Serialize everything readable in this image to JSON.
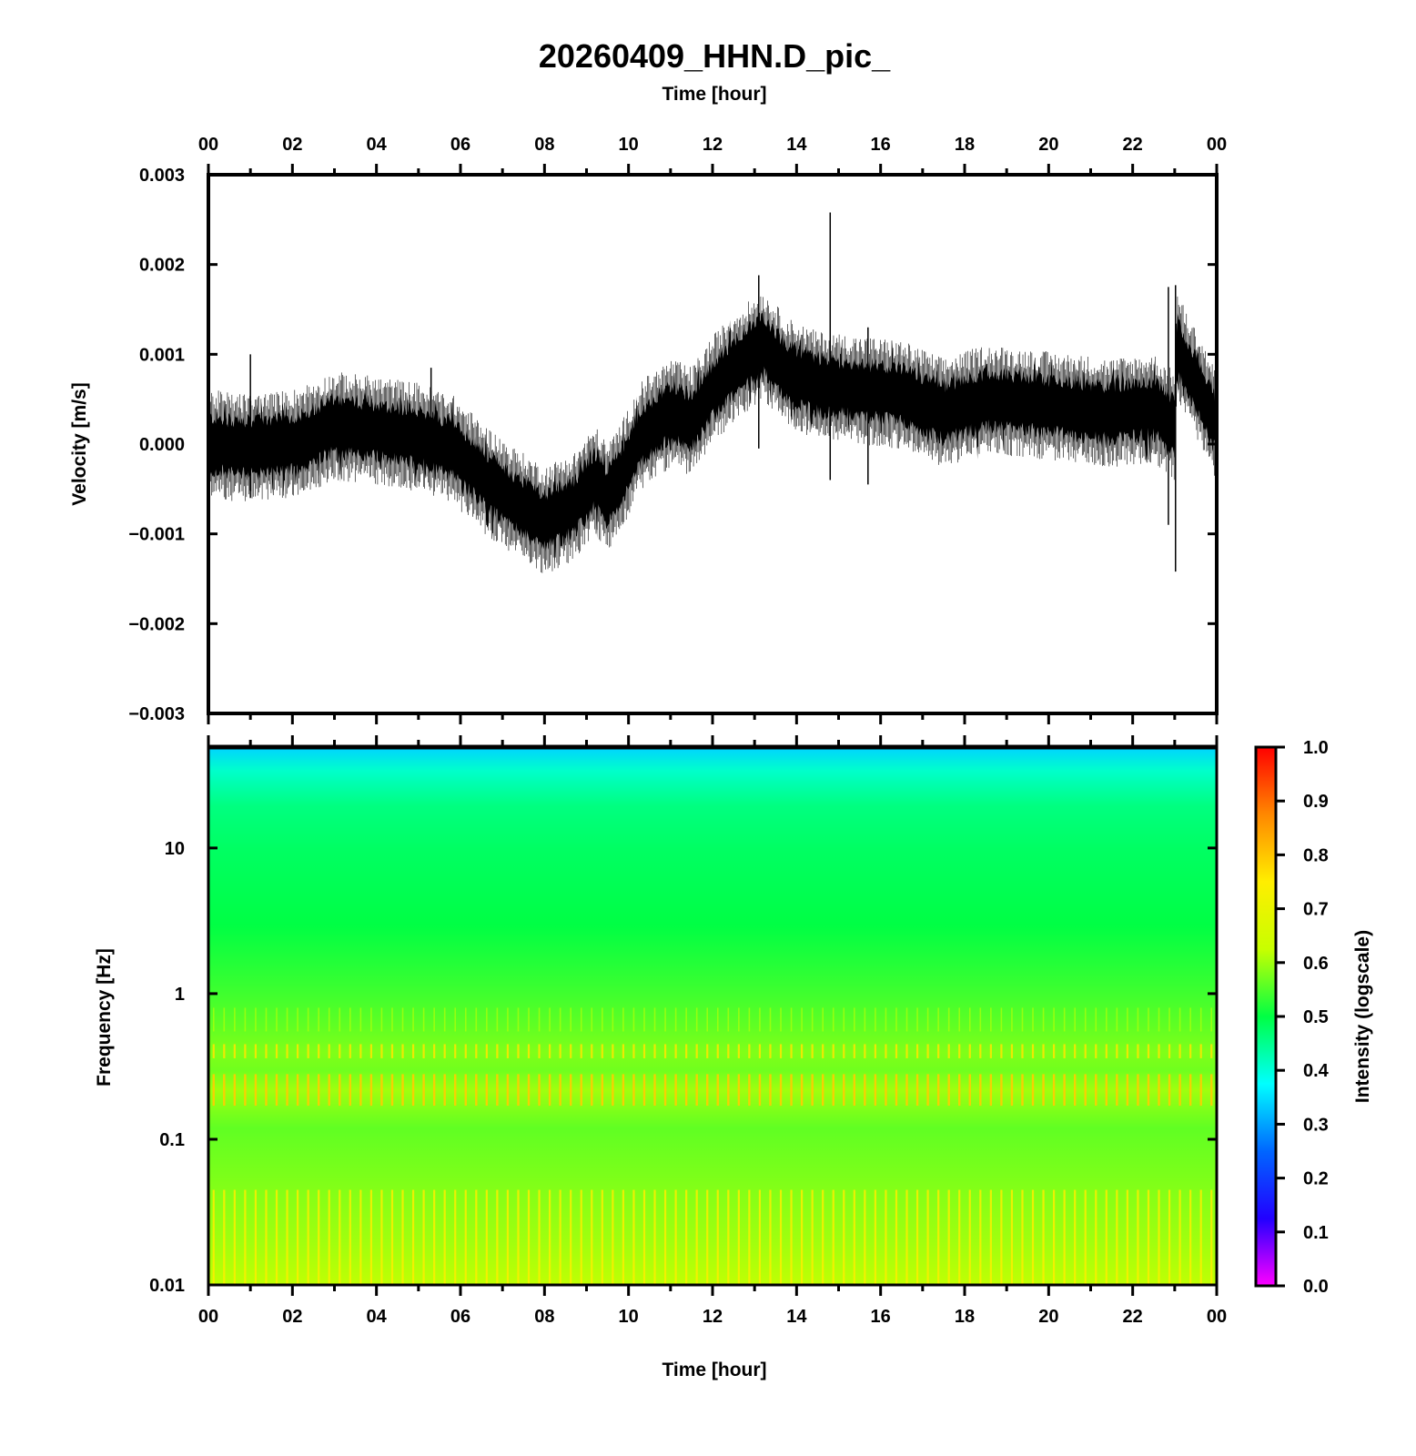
{
  "title": "20260409_HHN.D_pic_",
  "chart_data": [
    {
      "type": "line",
      "name": "velocity-waveform",
      "x_label_top": "Time [hour]",
      "ylabel": "Velocity [m/s]",
      "x_range_hours": [
        0,
        24
      ],
      "x_ticks": [
        "00",
        "02",
        "04",
        "06",
        "08",
        "10",
        "12",
        "14",
        "16",
        "18",
        "20",
        "22",
        "00"
      ],
      "ylim": [
        -0.003,
        0.003
      ],
      "y_ticks": [
        {
          "value": 0.003,
          "label": "0.003"
        },
        {
          "value": 0.002,
          "label": "0.002"
        },
        {
          "value": 0.001,
          "label": "0.001"
        },
        {
          "value": 0.0,
          "label": "0.000"
        },
        {
          "value": -0.001,
          "label": "−0.001"
        },
        {
          "value": -0.002,
          "label": "−0.002"
        },
        {
          "value": -0.003,
          "label": "−0.003"
        }
      ],
      "trend": {
        "hours": [
          0,
          1,
          2,
          3,
          4,
          5,
          5.8,
          6.6,
          7.3,
          8.0,
          8.7,
          9.2,
          9.5,
          9.9,
          10.3,
          11,
          11.5,
          12,
          12.6,
          13.2,
          13.8,
          14.5,
          15.5,
          16.5,
          17.5,
          18.5,
          19.5,
          20.5,
          21.5,
          22.5,
          23.0,
          23.05,
          23.3,
          23.6,
          24.0
        ],
        "center": [
          0.0,
          -5e-05,
          0.0,
          0.0002,
          0.00015,
          8e-05,
          -5e-05,
          -0.0004,
          -0.00065,
          -0.00085,
          -0.0007,
          -0.0004,
          -0.0006,
          -0.0003,
          0.0001,
          0.00035,
          0.00025,
          0.0006,
          0.0009,
          0.0011,
          0.0008,
          0.00065,
          0.0006,
          0.00055,
          0.00035,
          0.0005,
          0.00045,
          0.0004,
          0.00035,
          0.0004,
          0.0002,
          0.0011,
          0.00085,
          0.0006,
          0.0002
        ],
        "half_width": 0.00038
      },
      "spikes": [
        {
          "hour": 14.8,
          "min": -0.0004,
          "max": 0.00258
        },
        {
          "hour": 13.1,
          "min": -5e-05,
          "max": 0.00188
        },
        {
          "hour": 23.02,
          "min": -0.00142,
          "max": 0.00177
        },
        {
          "hour": 22.85,
          "min": -0.0009,
          "max": 0.00175
        },
        {
          "hour": 1.0,
          "min": -0.0006,
          "max": 0.001
        },
        {
          "hour": 5.3,
          "min": -0.0003,
          "max": 0.00085
        },
        {
          "hour": 15.7,
          "min": -0.00045,
          "max": 0.0013
        }
      ]
    },
    {
      "type": "heatmap",
      "name": "spectrogram",
      "xlabel": "Time [hour]",
      "ylabel": "Frequency [Hz]",
      "x_range_hours": [
        0,
        24
      ],
      "x_ticks": [
        "00",
        "02",
        "04",
        "06",
        "08",
        "10",
        "12",
        "14",
        "16",
        "18",
        "20",
        "22",
        "00"
      ],
      "y_scale": "log",
      "ylim": [
        0.01,
        50
      ],
      "y_ticks": [
        {
          "value": 10,
          "label": "10"
        },
        {
          "value": 1,
          "label": "1"
        },
        {
          "value": 0.1,
          "label": "0.1"
        },
        {
          "value": 0.01,
          "label": "0.01"
        }
      ],
      "intensity_profile": {
        "freq": [
          50,
          35,
          20,
          10,
          3,
          1,
          0.6,
          0.4,
          0.3,
          0.22,
          0.12,
          0.05,
          0.02,
          0.01
        ],
        "intensity": [
          0.34,
          0.41,
          0.46,
          0.48,
          0.5,
          0.54,
          0.56,
          0.58,
          0.57,
          0.6,
          0.56,
          0.58,
          0.6,
          0.62
        ]
      },
      "stripe_count": 96,
      "colorbar": {
        "label": "Intensity (logscale)",
        "range": [
          0.0,
          1.0
        ],
        "ticks": [
          "1.0",
          "0.9",
          "0.8",
          "0.7",
          "0.6",
          "0.5",
          "0.4",
          "0.3",
          "0.2",
          "0.1",
          "0.0"
        ],
        "colors": [
          "#ff00ff",
          "#2200ff",
          "#0066ff",
          "#00ffff",
          "#00ff44",
          "#c8ff00",
          "#ffee00",
          "#ff8800",
          "#ff0000"
        ]
      }
    }
  ]
}
